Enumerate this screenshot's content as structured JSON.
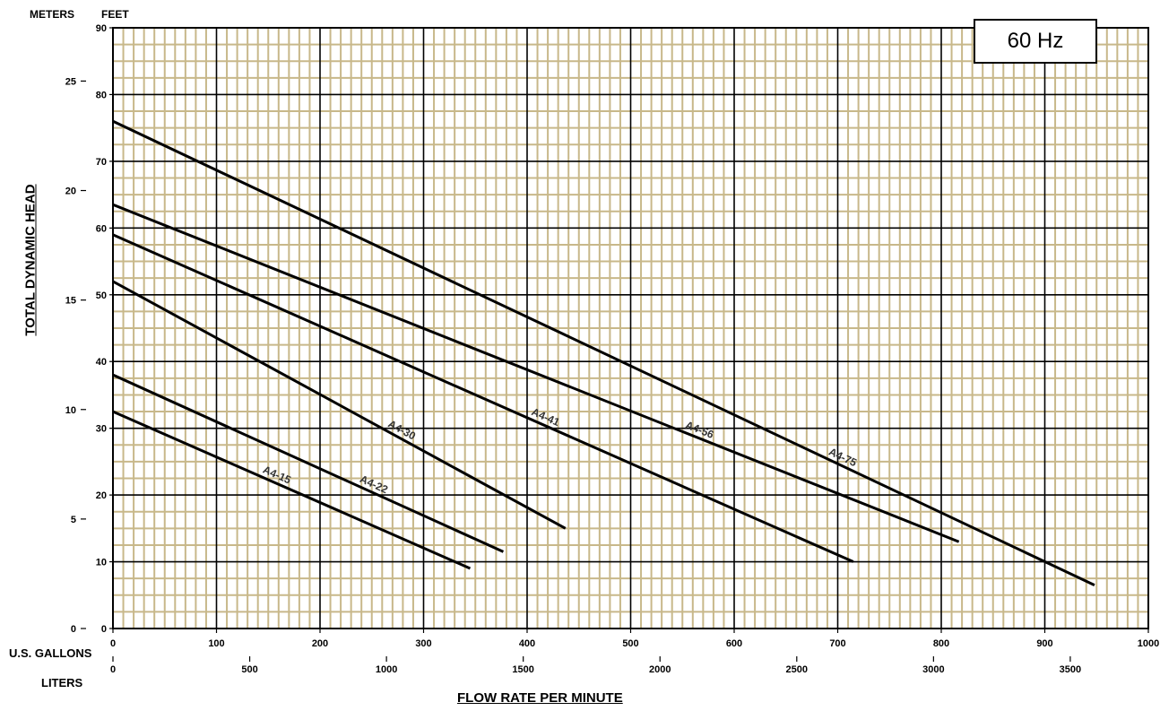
{
  "labels": {
    "meters": "METERS",
    "feet": "FEET",
    "gallons": "U.S. GALLONS",
    "liters": "LITERS",
    "x_title": "FLOW RATE PER MINUTE",
    "y_title": "TOTAL DYNAMIC HEAD",
    "frequency": "60 Hz"
  },
  "colors": {
    "grid_minor": "#c8b88a",
    "grid_major": "#000000",
    "curve": "#000000",
    "curve_label": "#333333",
    "background": "#ffffff"
  },
  "chart_data": {
    "type": "line",
    "title": "",
    "xlabel": "FLOW RATE PER MINUTE",
    "ylabel": "TOTAL DYNAMIC HEAD",
    "xlim": [
      0,
      1000
    ],
    "ylim": [
      0,
      90
    ],
    "grid": true,
    "x_ticks_gallons": [
      0,
      100,
      200,
      300,
      400,
      500,
      600,
      700,
      800,
      900,
      1000
    ],
    "x_ticks_liters": [
      0,
      500,
      1000,
      1500,
      2000,
      2500,
      3000,
      3500
    ],
    "y_ticks_feet": [
      0,
      10,
      20,
      30,
      40,
      50,
      60,
      70,
      80,
      90
    ],
    "y_ticks_meters": [
      0,
      5,
      10,
      15,
      20,
      25
    ],
    "series": [
      {
        "name": "A4-15",
        "x": [
          0,
          345
        ],
        "y": [
          32.5,
          9
        ]
      },
      {
        "name": "A4-22",
        "x": [
          0,
          377
        ],
        "y": [
          38,
          11.5
        ]
      },
      {
        "name": "A4-30",
        "x": [
          0,
          437
        ],
        "y": [
          52,
          15
        ]
      },
      {
        "name": "A4-41",
        "x": [
          0,
          715
        ],
        "y": [
          59,
          10
        ]
      },
      {
        "name": "A4-56",
        "x": [
          0,
          817
        ],
        "y": [
          63.5,
          13
        ]
      },
      {
        "name": "A4-75",
        "x": [
          0,
          948
        ],
        "y": [
          76,
          6.5
        ]
      }
    ]
  }
}
